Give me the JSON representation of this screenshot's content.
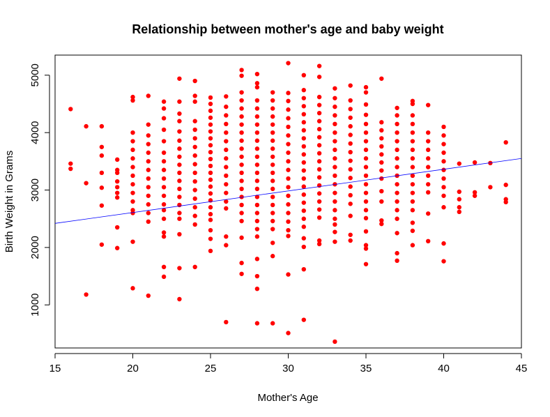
{
  "chart_data": {
    "type": "scatter",
    "title": "Relationship between mother's age and baby weight",
    "xlabel": "Mother's Age",
    "ylabel": "Birth Weight in Grams",
    "xlim": [
      15,
      45
    ],
    "ylim": [
      250,
      5350
    ],
    "xticks": [
      "15",
      "20",
      "25",
      "30",
      "35",
      "40",
      "45"
    ],
    "yticks": [
      "1000",
      "2000",
      "3000",
      "4000",
      "5000"
    ],
    "grid": false,
    "legend": "none",
    "point_color": "#ff0000",
    "line_color": "#0000ff",
    "trend_line": {
      "x": [
        15,
        45
      ],
      "y": [
        2420,
        3550
      ]
    },
    "columns": [
      {
        "x": 16,
        "ys": [
          4410,
          3460,
          3370
        ]
      },
      {
        "x": 17,
        "ys": [
          4110,
          3120,
          1180
        ]
      },
      {
        "x": 18,
        "ys": [
          4110,
          3750,
          3600,
          3300,
          3040,
          2730,
          2050
        ]
      },
      {
        "x": 19,
        "ys": [
          3530,
          3350,
          3300,
          3150,
          3050,
          2950,
          2870,
          2350,
          1990
        ]
      },
      {
        "x": 20,
        "ys": [
          4620,
          4560,
          4000,
          3850,
          3700,
          3550,
          3400,
          3250,
          3100,
          2950,
          2800,
          2650,
          2600,
          2100,
          1290
        ]
      },
      {
        "x": 21,
        "ys": [
          4640,
          4140,
          3950,
          3800,
          3650,
          3500,
          3350,
          3200,
          3050,
          2900,
          2750,
          2600,
          2450,
          1160
        ]
      },
      {
        "x": 22,
        "ys": [
          4540,
          4420,
          4250,
          4050,
          3850,
          3650,
          3500,
          3350,
          3200,
          3050,
          2900,
          2750,
          2650,
          2500,
          2260,
          2190,
          1660,
          1490
        ]
      },
      {
        "x": 23,
        "ys": [
          4940,
          4540,
          4330,
          4200,
          4020,
          3860,
          3720,
          3580,
          3440,
          3300,
          3160,
          3020,
          2880,
          2740,
          2600,
          2500,
          2230,
          1640,
          1100
        ]
      },
      {
        "x": 24,
        "ys": [
          4900,
          4640,
          4540,
          4200,
          4050,
          3900,
          3750,
          3600,
          3450,
          3300,
          3150,
          3000,
          2850,
          2700,
          2550,
          2400,
          1660
        ]
      },
      {
        "x": 25,
        "ys": [
          4610,
          4500,
          4380,
          4260,
          4140,
          4020,
          3900,
          3780,
          3660,
          3540,
          3420,
          3300,
          3180,
          3060,
          2940,
          2820,
          2700,
          2580,
          2480,
          2300,
          2150,
          1940
        ]
      },
      {
        "x": 26,
        "ys": [
          4630,
          4450,
          4300,
          4150,
          4000,
          3850,
          3700,
          3550,
          3400,
          3250,
          3100,
          2950,
          2800,
          2680,
          2190,
          2040,
          700
        ]
      },
      {
        "x": 27,
        "ys": [
          5090,
          4990,
          4700,
          4560,
          4420,
          4280,
          4140,
          4000,
          3860,
          3720,
          3580,
          3440,
          3300,
          3160,
          3020,
          2880,
          2740,
          2600,
          2460,
          2170,
          1730,
          1540
        ]
      },
      {
        "x": 28,
        "ys": [
          5020,
          4860,
          4790,
          4560,
          4420,
          4280,
          4140,
          4000,
          3860,
          3720,
          3580,
          3440,
          3300,
          3160,
          3020,
          2880,
          2740,
          2600,
          2460,
          2320,
          2190,
          1800,
          1500,
          1280,
          680
        ]
      },
      {
        "x": 29,
        "ys": [
          4700,
          4560,
          4420,
          4280,
          4140,
          4000,
          3860,
          3720,
          3580,
          3440,
          3300,
          3160,
          3020,
          2880,
          2740,
          2600,
          2460,
          2320,
          2080,
          1850,
          680
        ]
      },
      {
        "x": 30,
        "ys": [
          5210,
          4690,
          4550,
          4400,
          4250,
          4100,
          3950,
          3800,
          3650,
          3500,
          3350,
          3200,
          3050,
          2900,
          2750,
          2600,
          2450,
          2300,
          2200,
          1530,
          510
        ]
      },
      {
        "x": 31,
        "ys": [
          5000,
          4740,
          4600,
          4460,
          4320,
          4180,
          4040,
          3900,
          3760,
          3620,
          3480,
          3340,
          3200,
          3060,
          2920,
          2780,
          2640,
          2500,
          2360,
          2160,
          2010,
          1620,
          740
        ]
      },
      {
        "x": 32,
        "ys": [
          5160,
          4970,
          4620,
          4480,
          4340,
          4200,
          4060,
          3920,
          3780,
          3640,
          3500,
          3360,
          3220,
          3080,
          2940,
          2800,
          2660,
          2520,
          2120,
          2060
        ]
      },
      {
        "x": 33,
        "ys": [
          4770,
          4600,
          4450,
          4300,
          4150,
          4000,
          3850,
          3700,
          3550,
          3400,
          3250,
          3100,
          2950,
          2800,
          2650,
          2500,
          2400,
          2270,
          2100,
          360
        ]
      },
      {
        "x": 34,
        "ys": [
          4820,
          4560,
          4410,
          4260,
          4110,
          3960,
          3810,
          3660,
          3510,
          3360,
          3210,
          3060,
          2910,
          2760,
          2550,
          2220,
          2120
        ]
      },
      {
        "x": 35,
        "ys": [
          4790,
          4700,
          4490,
          4310,
          4150,
          4000,
          3850,
          3700,
          3550,
          3400,
          3250,
          3100,
          2950,
          2800,
          2650,
          2510,
          2280,
          2040,
          1980,
          1710
        ]
      },
      {
        "x": 36,
        "ys": [
          4940,
          4180,
          4040,
          3900,
          3760,
          3620,
          3480,
          3340,
          3200,
          2980,
          2800,
          2470,
          2410
        ]
      },
      {
        "x": 37,
        "ys": [
          4430,
          4300,
          4150,
          4000,
          3850,
          3700,
          3550,
          3400,
          3250,
          3100,
          2950,
          2800,
          2650,
          2500,
          2250,
          1900,
          1770
        ]
      },
      {
        "x": 38,
        "ys": [
          4550,
          4500,
          4300,
          4150,
          4000,
          3850,
          3700,
          3550,
          3400,
          3250,
          3100,
          2950,
          2800,
          2650,
          2430,
          2290,
          2040
        ]
      },
      {
        "x": 39,
        "ys": [
          4480,
          4000,
          3850,
          3700,
          3550,
          3400,
          3250,
          3100,
          2960,
          2590,
          2110
        ]
      },
      {
        "x": 40,
        "ys": [
          4100,
          3950,
          3800,
          3650,
          3500,
          3350,
          3200,
          3050,
          2900,
          2700,
          2070,
          1760
        ]
      },
      {
        "x": 41,
        "ys": [
          3460,
          2970,
          2840,
          2700,
          2620
        ]
      },
      {
        "x": 42,
        "ys": [
          3480,
          2960,
          2900
        ]
      },
      {
        "x": 43,
        "ys": [
          3470,
          3050
        ]
      },
      {
        "x": 44,
        "ys": [
          3830,
          3090,
          2840,
          2790
        ]
      }
    ]
  }
}
